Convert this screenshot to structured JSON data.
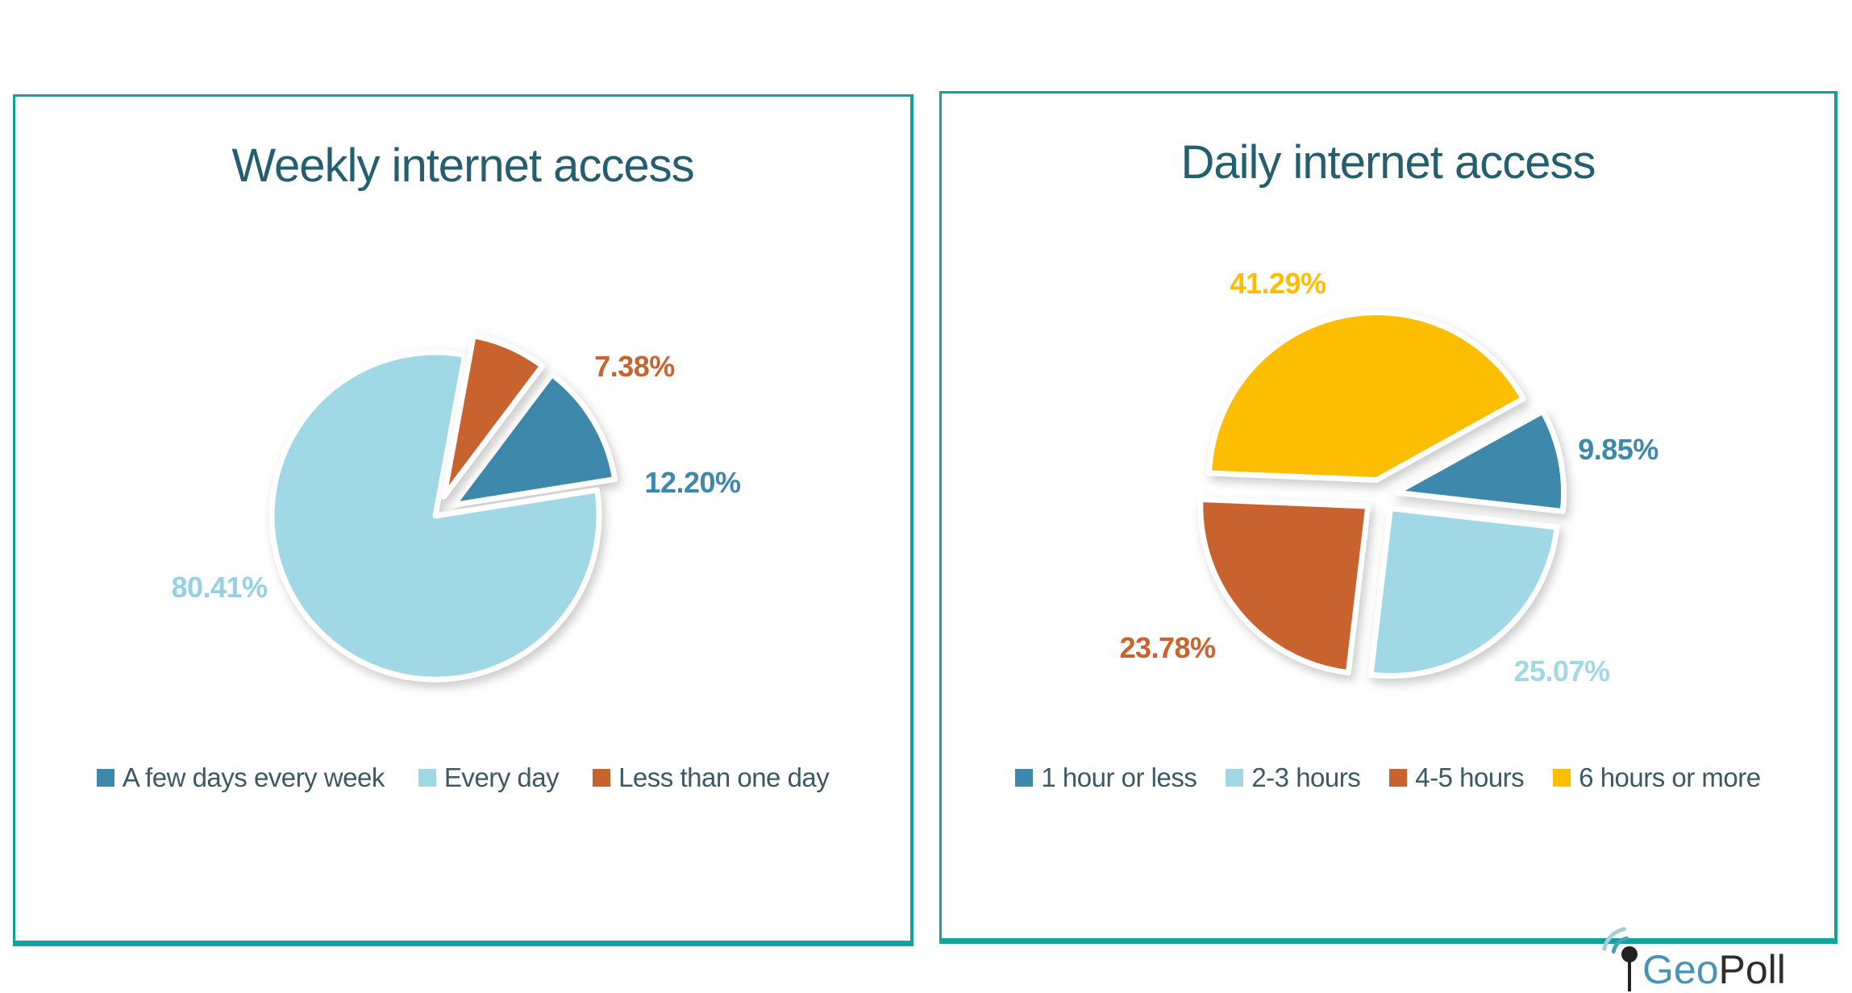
{
  "styles": {
    "background": "#ffffff",
    "panel_border_color": "#10a29b",
    "title_color": "#235f6e",
    "legend_text_color": "#3b5a64",
    "steel_blue": "#3d88ab",
    "light_blue": "#a0d8e6",
    "orange": "#c8632f",
    "yellow": "#fdbd00"
  },
  "chart_data": [
    {
      "type": "pie",
      "title": "Weekly internet access",
      "categories": [
        "A few days every week",
        "Every day",
        "Less than one day"
      ],
      "values": [
        12.2,
        80.41,
        7.38
      ],
      "value_labels": [
        "12.20%",
        "80.41%",
        "7.38%"
      ],
      "colors": [
        "#3d88ab",
        "#a0d8e6",
        "#c8632f"
      ],
      "label_colors": [
        "#3d88ab",
        "#93d2e4",
        "#c8632f"
      ],
      "legend_position": "bottom",
      "start_angle_deg": 37,
      "exploded": [
        true,
        false,
        true
      ]
    },
    {
      "type": "pie",
      "title": "Daily internet access",
      "categories": [
        "1 hour or less",
        "2-3 hours",
        "4-5 hours",
        "6 hours or more"
      ],
      "values": [
        9.85,
        25.07,
        23.78,
        41.29
      ],
      "value_labels": [
        "9.85%",
        "25.07%",
        "23.78%",
        "41.29%"
      ],
      "colors": [
        "#3d88ab",
        "#a0d8e6",
        "#c8632f",
        "#fdbd00"
      ],
      "label_colors": [
        "#3d88ab",
        "#a0d8e6",
        "#c8632f",
        "#fdbd00"
      ],
      "legend_position": "bottom",
      "start_angle_deg": 61,
      "exploded": [
        true,
        true,
        true,
        true
      ]
    }
  ],
  "logo": {
    "icon": "antenna-signal-icon",
    "text_primary": "Geo",
    "text_secondary": "Poll",
    "primary_color": "#4a93b6",
    "secondary_color": "#2e2e2e"
  }
}
